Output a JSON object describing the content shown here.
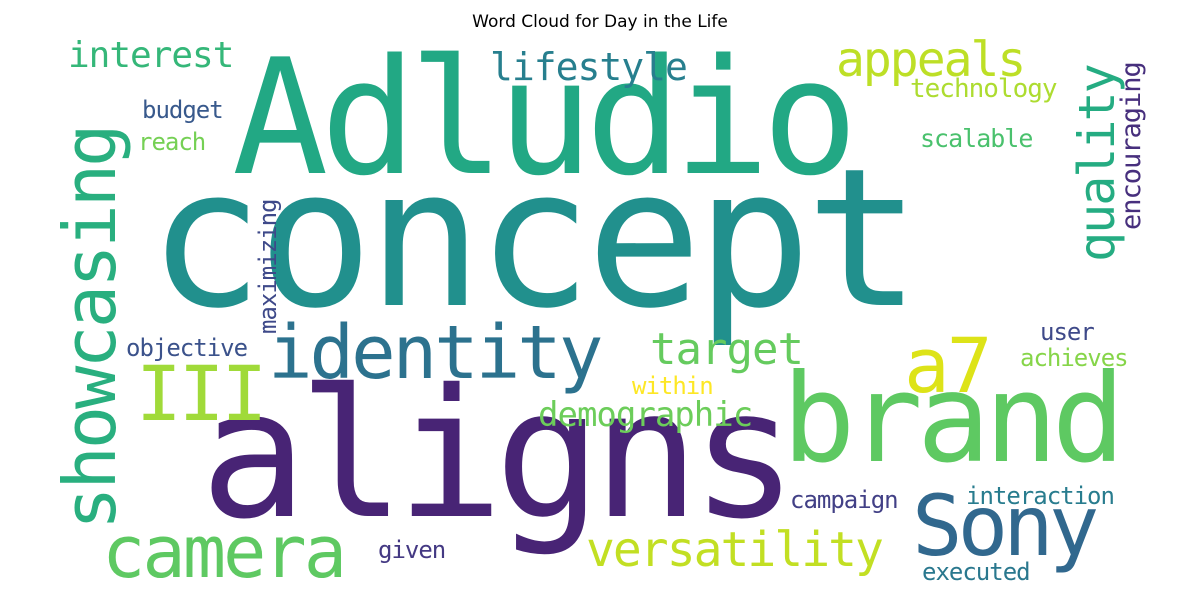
{
  "title": "Word Cloud for Day in the Life",
  "words": [
    {
      "text": "concept",
      "color": "#21908d"
    },
    {
      "text": "Adludio",
      "color": "#22a884"
    },
    {
      "text": "aligns",
      "color": "#482475"
    },
    {
      "text": "brand",
      "color": "#5ec962"
    },
    {
      "text": "identity",
      "color": "#2c728e"
    },
    {
      "text": "showcasing",
      "color": "#29af7f"
    },
    {
      "text": "camera",
      "color": "#5ec962"
    },
    {
      "text": "Sony",
      "color": "#31688e"
    },
    {
      "text": "a7",
      "color": "#dde318"
    },
    {
      "text": "III",
      "color": "#a0da39"
    },
    {
      "text": "versatility",
      "color": "#c2df23"
    },
    {
      "text": "appeals",
      "color": "#bddf26"
    },
    {
      "text": "target",
      "color": "#65cb5e"
    },
    {
      "text": "quality",
      "color": "#25ac82"
    },
    {
      "text": "interest",
      "color": "#35b779"
    },
    {
      "text": "lifestyle",
      "color": "#277f8e"
    },
    {
      "text": "demographic",
      "color": "#6ccd5a"
    },
    {
      "text": "encouraging",
      "color": "#472f7d"
    },
    {
      "text": "technology",
      "color": "#addc30"
    },
    {
      "text": "scalable",
      "color": "#4ac16d"
    },
    {
      "text": "budget",
      "color": "#38598c"
    },
    {
      "text": "reach",
      "color": "#75d054"
    },
    {
      "text": "maximizing",
      "color": "#3e4989"
    },
    {
      "text": "objective",
      "color": "#3b528b"
    },
    {
      "text": "user",
      "color": "#3e4989"
    },
    {
      "text": "achieves",
      "color": "#86d549"
    },
    {
      "text": "within",
      "color": "#fde725"
    },
    {
      "text": "campaign",
      "color": "#424086"
    },
    {
      "text": "interaction",
      "color": "#287c8e"
    },
    {
      "text": "given",
      "color": "#443983"
    },
    {
      "text": "executed",
      "color": "#2a788e"
    }
  ]
}
